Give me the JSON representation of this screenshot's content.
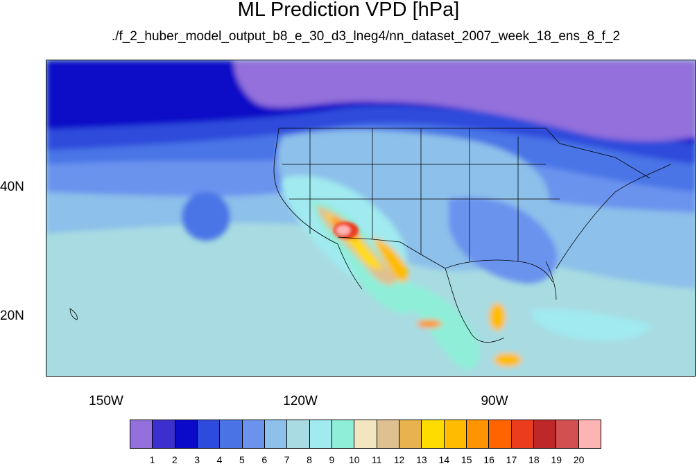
{
  "title": "ML Prediction VPD [hPa]",
  "subtitle": "./f_2_huber_model_output_b8_e_30_d3_lneg4/nn_dataset_2007_week_18_ens_8_f_2",
  "lat_labels": [
    "40N",
    "20N"
  ],
  "lon_labels": [
    "150W",
    "120W",
    "90W"
  ],
  "colorbar": {
    "labels": [
      "1",
      "2",
      "3",
      "4",
      "5",
      "6",
      "7",
      "8",
      "9",
      "10",
      "11",
      "12",
      "13",
      "14",
      "15",
      "16",
      "17",
      "18",
      "19",
      "20"
    ],
    "colors": [
      "#9370db",
      "#3d2fce",
      "#0a0ac8",
      "#2d4bdc",
      "#4a74e6",
      "#6b93ee",
      "#8dc0ea",
      "#a8dce2",
      "#a0eaf0",
      "#8eeed8",
      "#f2e6c0",
      "#dfc090",
      "#e8b24e",
      "#ffdc00",
      "#ffbc00",
      "#ff9400",
      "#ff6400",
      "#eb3c1e",
      "#be2828",
      "#d25050",
      "#ffb4b4"
    ]
  }
}
